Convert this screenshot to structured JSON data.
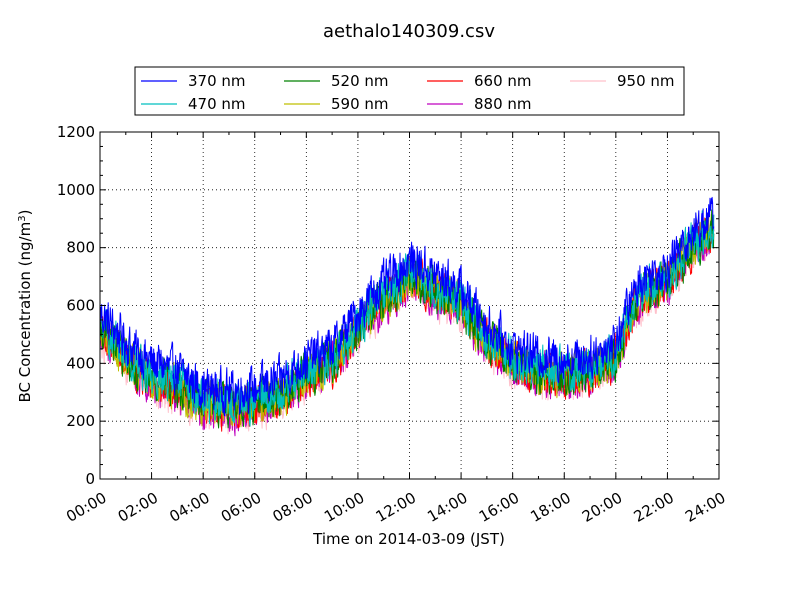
{
  "chart_data": {
    "type": "line",
    "title": "aethalo140309.csv",
    "xlabel": "Time on 2014-03-09 (JST)",
    "ylabel_main": "BC Concentration (ng/m",
    "ylabel_sup": "3",
    "ylabel_end": ")",
    "xlim": [
      0,
      24
    ],
    "ylim": [
      0,
      1200
    ],
    "x_ticks": [
      0,
      2,
      4,
      6,
      8,
      10,
      12,
      14,
      16,
      18,
      20,
      22,
      24
    ],
    "x_tick_labels": [
      "00:00",
      "02:00",
      "04:00",
      "06:00",
      "08:00",
      "10:00",
      "12:00",
      "14:00",
      "16:00",
      "18:00",
      "20:00",
      "22:00",
      "24:00"
    ],
    "y_ticks": [
      0,
      200,
      400,
      600,
      800,
      1000,
      1200
    ],
    "y_tick_labels": [
      "0",
      "200",
      "400",
      "600",
      "800",
      "1000",
      "1200"
    ],
    "grid": true,
    "legend": "top",
    "data_end": 23.8,
    "base_profile": {
      "x": [
        0,
        0.5,
        1,
        1.5,
        2,
        3,
        4,
        5,
        6,
        7,
        8,
        9,
        10,
        10.5,
        11,
        11.5,
        12,
        12.5,
        13,
        13.5,
        14,
        15,
        16,
        17,
        18,
        19,
        20,
        20.5,
        21,
        22,
        22.5,
        23,
        23.5,
        23.8
      ],
      "y": [
        520,
        470,
        420,
        380,
        350,
        320,
        260,
        250,
        260,
        290,
        360,
        400,
        520,
        580,
        620,
        660,
        700,
        680,
        650,
        630,
        600,
        480,
        400,
        370,
        360,
        370,
        420,
        550,
        640,
        680,
        740,
        800,
        840,
        860
      ]
    },
    "series": [
      {
        "name": "370 nm",
        "color": "#0000ff",
        "offset": 55
      },
      {
        "name": "470 nm",
        "color": "#00bfbf",
        "offset": 15
      },
      {
        "name": "520 nm",
        "color": "#008000",
        "offset": 5
      },
      {
        "name": "590 nm",
        "color": "#bfbf00",
        "offset": 0
      },
      {
        "name": "660 nm",
        "color": "#ff0000",
        "offset": -5
      },
      {
        "name": "880 nm",
        "color": "#bf00bf",
        "offset": -15
      },
      {
        "name": "950 nm",
        "color": "#ffc0cb",
        "offset": -20
      }
    ]
  }
}
